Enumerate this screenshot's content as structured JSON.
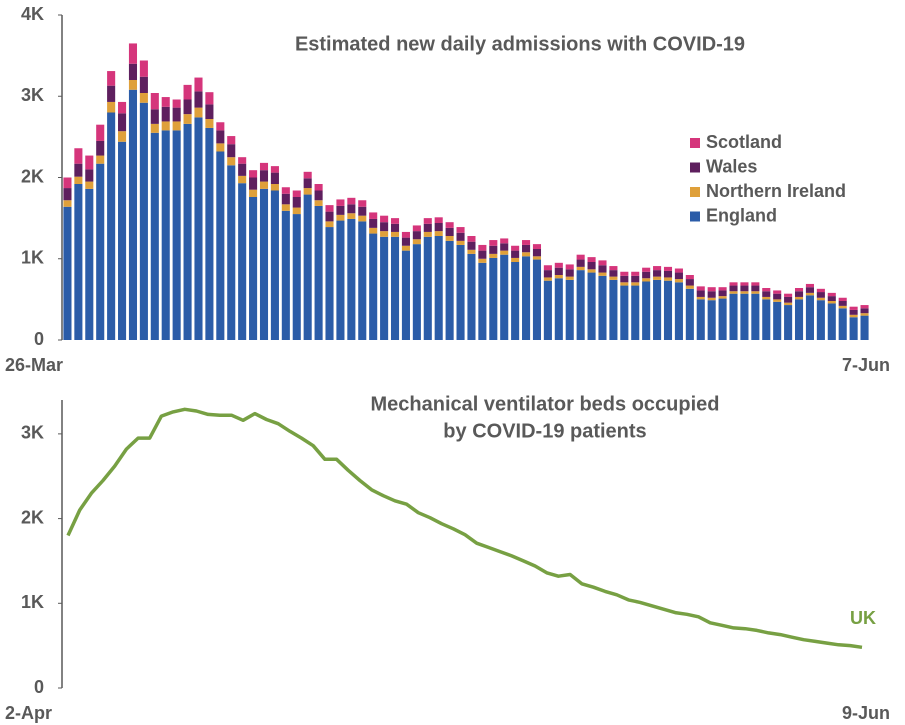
{
  "chart_data": [
    {
      "type": "bar",
      "stacked": true,
      "title": "Estimated new daily admissions with COVID-19",
      "categories": [
        "26-Mar",
        null,
        null,
        null,
        null,
        null,
        null,
        null,
        null,
        null,
        null,
        null,
        null,
        null,
        null,
        null,
        null,
        null,
        null,
        null,
        null,
        null,
        null,
        null,
        null,
        null,
        null,
        null,
        null,
        null,
        null,
        null,
        null,
        null,
        null,
        null,
        null,
        null,
        null,
        null,
        null,
        null,
        null,
        null,
        null,
        null,
        null,
        null,
        null,
        null,
        null,
        null,
        null,
        null,
        null,
        null,
        null,
        null,
        null,
        null,
        null,
        null,
        null,
        null,
        null,
        null,
        null,
        null,
        null,
        null,
        null,
        null,
        null,
        "7-Jun"
      ],
      "series": [
        {
          "name": "England",
          "color": "#2b5ca8",
          "values": [
            1640,
            1920,
            1860,
            2170,
            2800,
            2440,
            3080,
            2920,
            2550,
            2580,
            2580,
            2660,
            2740,
            2610,
            2320,
            2150,
            1930,
            1760,
            1860,
            1840,
            1590,
            1550,
            1790,
            1650,
            1390,
            1470,
            1490,
            1460,
            1310,
            1270,
            1270,
            1100,
            1180,
            1270,
            1280,
            1220,
            1170,
            1060,
            950,
            1010,
            1050,
            960,
            1030,
            990,
            730,
            760,
            740,
            860,
            830,
            790,
            740,
            670,
            670,
            720,
            740,
            730,
            710,
            630,
            500,
            490,
            510,
            570,
            570,
            570,
            500,
            470,
            430,
            500,
            550,
            490,
            450,
            390,
            280,
            300
          ]
        },
        {
          "name": "Northern Ireland",
          "color": "#dfa03a",
          "values": [
            80,
            90,
            90,
            100,
            130,
            130,
            120,
            120,
            110,
            110,
            110,
            120,
            120,
            110,
            100,
            100,
            90,
            90,
            90,
            80,
            80,
            80,
            80,
            70,
            70,
            70,
            70,
            70,
            70,
            70,
            60,
            60,
            60,
            60,
            60,
            60,
            50,
            50,
            50,
            50,
            50,
            50,
            50,
            40,
            40,
            40,
            40,
            40,
            40,
            40,
            40,
            40,
            40,
            40,
            40,
            40,
            40,
            40,
            30,
            30,
            30,
            30,
            30,
            30,
            30,
            30,
            30,
            30,
            30,
            30,
            30,
            30,
            30,
            30
          ]
        },
        {
          "name": "Wales",
          "color": "#5e1f5e",
          "values": [
            150,
            160,
            150,
            180,
            200,
            220,
            200,
            200,
            180,
            180,
            170,
            180,
            200,
            180,
            160,
            160,
            150,
            150,
            140,
            140,
            130,
            130,
            120,
            120,
            120,
            110,
            110,
            110,
            110,
            110,
            100,
            100,
            100,
            100,
            100,
            100,
            100,
            100,
            100,
            100,
            90,
            90,
            90,
            90,
            90,
            90,
            90,
            90,
            90,
            90,
            80,
            80,
            80,
            80,
            80,
            80,
            80,
            80,
            80,
            80,
            70,
            70,
            70,
            70,
            70,
            70,
            70,
            70,
            70,
            70,
            60,
            60,
            60,
            60
          ]
        },
        {
          "name": "Scotland",
          "color": "#d5357b",
          "values": [
            130,
            190,
            170,
            200,
            180,
            140,
            250,
            200,
            200,
            120,
            100,
            180,
            170,
            150,
            100,
            100,
            80,
            90,
            90,
            80,
            80,
            80,
            80,
            80,
            80,
            80,
            80,
            80,
            80,
            80,
            70,
            70,
            70,
            70,
            70,
            70,
            70,
            70,
            70,
            70,
            60,
            60,
            60,
            60,
            60,
            60,
            60,
            60,
            60,
            60,
            50,
            50,
            50,
            50,
            50,
            50,
            50,
            50,
            50,
            50,
            40,
            40,
            40,
            40,
            40,
            40,
            40,
            40,
            40,
            40,
            40,
            40,
            40,
            40
          ]
        }
      ],
      "ylim": [
        0,
        4000
      ],
      "yticks": [
        0,
        {
          "value": 1000,
          "label": "1K"
        },
        {
          "value": 2000,
          "label": "2K"
        },
        {
          "value": 3000,
          "label": "3K"
        },
        {
          "value": 4000,
          "label": "4K"
        }
      ],
      "legend": "right"
    },
    {
      "type": "line",
      "title": [
        "Mechanical ventilator beds occupied",
        "by COVID-19 patients"
      ],
      "categories": [
        "2-Apr",
        null,
        null,
        null,
        null,
        null,
        null,
        null,
        null,
        null,
        null,
        null,
        null,
        null,
        null,
        null,
        null,
        null,
        null,
        null,
        null,
        null,
        null,
        null,
        null,
        null,
        null,
        null,
        null,
        null,
        null,
        null,
        null,
        null,
        null,
        null,
        null,
        null,
        null,
        null,
        null,
        null,
        null,
        null,
        null,
        null,
        null,
        null,
        null,
        null,
        null,
        null,
        null,
        null,
        null,
        null,
        null,
        null,
        null,
        null,
        null,
        null,
        null,
        null,
        null,
        null,
        null,
        null,
        "9-Jun"
      ],
      "series": [
        {
          "name": "UK",
          "color": "#77a043",
          "values": [
            1800,
            2100,
            2300,
            2450,
            2620,
            2820,
            2950,
            2950,
            3210,
            3260,
            3290,
            3270,
            3230,
            3220,
            3220,
            3160,
            3240,
            3170,
            3120,
            3030,
            2950,
            2860,
            2700,
            2700,
            2570,
            2450,
            2340,
            2270,
            2210,
            2170,
            2070,
            2010,
            1940,
            1880,
            1810,
            1710,
            1660,
            1610,
            1560,
            1500,
            1440,
            1360,
            1320,
            1340,
            1230,
            1190,
            1140,
            1100,
            1040,
            1010,
            970,
            930,
            890,
            870,
            840,
            770,
            740,
            710,
            700,
            680,
            650,
            630,
            600,
            570,
            550,
            530,
            510,
            500,
            480
          ]
        }
      ],
      "ylim": [
        0,
        3400
      ],
      "yticks": [
        0,
        {
          "value": 1000,
          "label": "1K"
        },
        {
          "value": 2000,
          "label": "2K"
        },
        {
          "value": 3000,
          "label": "3K"
        }
      ]
    }
  ]
}
